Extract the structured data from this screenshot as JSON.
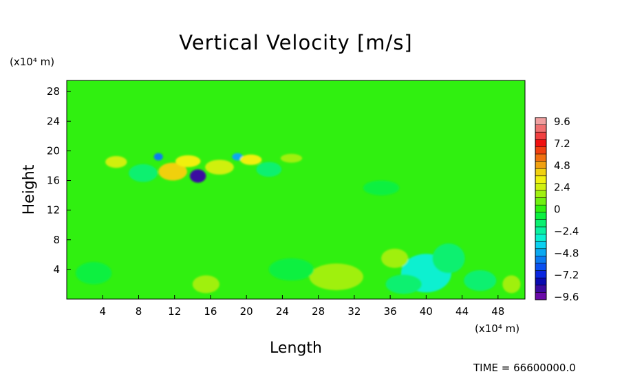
{
  "chart_data": {
    "type": "heatmap",
    "title": "Vertical Velocity [m/s]",
    "xlabel": "Length",
    "ylabel": "Height",
    "x_unit": "(x10⁴ m)",
    "y_unit": "(x10⁴ m)",
    "xlim": [
      0,
      51
    ],
    "ylim": [
      0,
      29.5
    ],
    "x_ticks": [
      4,
      8,
      12,
      16,
      20,
      24,
      28,
      32,
      36,
      40,
      44,
      48
    ],
    "y_ticks": [
      4,
      8,
      12,
      16,
      20,
      24,
      28
    ],
    "background_value": 0,
    "colorbar": {
      "labels": [
        "9.6",
        "7.2",
        "4.8",
        "2.4",
        "0",
        "−2.4",
        "−4.8",
        "−7.2",
        "−9.6"
      ],
      "range": [
        -9.6,
        9.6
      ],
      "colors": [
        "#6a0aa8",
        "#3a0aa0",
        "#0a0ab0",
        "#0a26e0",
        "#0a50f0",
        "#0a7af0",
        "#0aa8f0",
        "#0ad0f0",
        "#0af0d0",
        "#0af0a0",
        "#0af070",
        "#0af040",
        "#30f010",
        "#70f010",
        "#a0f010",
        "#d0f010",
        "#f0f010",
        "#f0d010",
        "#f0a010",
        "#f07010",
        "#f04010",
        "#f01010",
        "#f04040",
        "#f07070",
        "#f0a0a0"
      ]
    },
    "features": [
      {
        "x": 14.6,
        "y": 16.6,
        "value": -8.5,
        "rx": 0.9,
        "ry": 0.9
      },
      {
        "x": 10.2,
        "y": 19.2,
        "value": -5.5,
        "rx": 0.5,
        "ry": 0.5
      },
      {
        "x": 19.0,
        "y": 19.2,
        "value": -5.0,
        "rx": 0.6,
        "ry": 0.5
      },
      {
        "x": 11.8,
        "y": 17.2,
        "value": 3.8,
        "rx": 1.6,
        "ry": 1.2
      },
      {
        "x": 13.5,
        "y": 18.6,
        "value": 3.2,
        "rx": 1.4,
        "ry": 0.8
      },
      {
        "x": 17.0,
        "y": 17.8,
        "value": 2.8,
        "rx": 1.6,
        "ry": 1.0
      },
      {
        "x": 20.5,
        "y": 18.8,
        "value": 3.0,
        "rx": 1.2,
        "ry": 0.7
      },
      {
        "x": 5.5,
        "y": 18.5,
        "value": 2.0,
        "rx": 1.2,
        "ry": 0.8
      },
      {
        "x": 8.5,
        "y": 17.0,
        "value": -1.6,
        "rx": 1.6,
        "ry": 1.2
      },
      {
        "x": 22.5,
        "y": 17.5,
        "value": -1.6,
        "rx": 1.4,
        "ry": 1.0
      },
      {
        "x": 25.0,
        "y": 19.0,
        "value": 1.8,
        "rx": 1.2,
        "ry": 0.6
      },
      {
        "x": 40.0,
        "y": 3.5,
        "value": -3.0,
        "rx": 2.8,
        "ry": 2.6
      },
      {
        "x": 36.5,
        "y": 5.5,
        "value": 1.8,
        "rx": 1.5,
        "ry": 1.3
      },
      {
        "x": 42.5,
        "y": 5.5,
        "value": -2.0,
        "rx": 1.8,
        "ry": 2.0
      },
      {
        "x": 37.5,
        "y": 2.0,
        "value": -1.8,
        "rx": 2.0,
        "ry": 1.3
      },
      {
        "x": 30.0,
        "y": 3.0,
        "value": 1.6,
        "rx": 3.0,
        "ry": 1.8
      },
      {
        "x": 46.0,
        "y": 2.5,
        "value": -1.8,
        "rx": 1.8,
        "ry": 1.4
      },
      {
        "x": 49.5,
        "y": 2.0,
        "value": 1.5,
        "rx": 1.0,
        "ry": 1.2
      },
      {
        "x": 15.5,
        "y": 2.0,
        "value": 1.5,
        "rx": 1.5,
        "ry": 1.2
      },
      {
        "x": 25.0,
        "y": 4.0,
        "value": -1.2,
        "rx": 2.5,
        "ry": 1.5
      },
      {
        "x": 3.0,
        "y": 3.5,
        "value": -1.2,
        "rx": 2.0,
        "ry": 1.5
      },
      {
        "x": 35.0,
        "y": 15.0,
        "value": -1.0,
        "rx": 2.0,
        "ry": 1.0
      }
    ]
  },
  "footer": {
    "time_label": "TIME  =  66600000.0"
  }
}
